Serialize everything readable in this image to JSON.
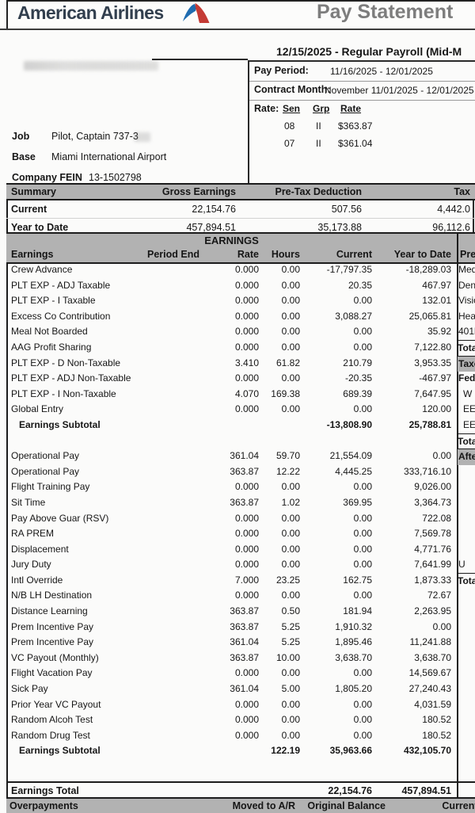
{
  "header": {
    "logo_text": "American Airlines",
    "title": "Pay Statement",
    "statement_title": "12/15/2025 - Regular Payroll (Mid-M",
    "colors": {
      "logo_navy": "#323f4e",
      "logo_blue": "#1f6cb0",
      "logo_red": "#c43b35",
      "title_gray": "#7d7d7d",
      "band_gray": "#b2b2b2"
    }
  },
  "pay_info": {
    "pay_period_label": "Pay Period:",
    "pay_period_value": "11/16/2025 - 12/01/2025",
    "contract_month_label": "Contract Month:",
    "contract_month_value": "November 11/01/2025 - 12/01/2025",
    "rate_label": "Rate:",
    "rate_table": {
      "headers": [
        "Sen",
        "Grp",
        "Rate"
      ],
      "rows": [
        [
          "08",
          "II",
          "$363.87"
        ],
        [
          "07",
          "II",
          "$361.04"
        ]
      ]
    }
  },
  "employee": {
    "job_label": "Job",
    "job_value": "Pilot, Captain 737-3",
    "base_label": "Base",
    "base_value": "Miami International Airport",
    "fein_label": "Company FEIN",
    "fein_value": "13-1502798"
  },
  "summary": {
    "headers": [
      "Summary",
      "Gross Earnings",
      "Pre-Tax Deduction",
      "Tax"
    ],
    "rows": [
      {
        "label": "Current",
        "gross": "22,154.76",
        "pretax": "507.56",
        "tax": "4,442.0"
      },
      {
        "label": "Year to Date",
        "gross": "457,894.51",
        "pretax": "35,173.88",
        "tax": "96,112.6"
      }
    ]
  },
  "earnings": {
    "section_title": "EARNINGS",
    "columns": [
      "Earnings",
      "Period End",
      "Rate",
      "Hours",
      "Current",
      "Year to Date"
    ],
    "side_header": "Pre-",
    "rows": [
      {
        "label": "Crew Advance",
        "rate": "0.000",
        "hours": "0.00",
        "current": "-17,797.35",
        "ytd": "-18,289.03",
        "side": "Med",
        "side_style": "plain"
      },
      {
        "label": "PLT EXP - ADJ Taxable",
        "rate": "0.000",
        "hours": "0.00",
        "current": "20.35",
        "ytd": "467.97",
        "side": "Den",
        "side_style": "plain"
      },
      {
        "label": "PLT EXP - I Taxable",
        "rate": "0.000",
        "hours": "0.00",
        "current": "0.00",
        "ytd": "132.01",
        "side": "Visio",
        "side_style": "plain"
      },
      {
        "label": "Excess Co Contribution",
        "rate": "0.000",
        "hours": "0.00",
        "current": "3,088.27",
        "ytd": "25,065.81",
        "side": "Hea",
        "side_style": "plain"
      },
      {
        "label": "Meal Not Boarded",
        "rate": "0.000",
        "hours": "0.00",
        "current": "0.00",
        "ytd": "35.92",
        "side": "401k",
        "side_style": "plain"
      },
      {
        "label": "AAG Profit Sharing",
        "rate": "0.000",
        "hours": "0.00",
        "current": "0.00",
        "ytd": "7,122.80",
        "side": "Tota",
        "side_style": "total"
      },
      {
        "label": "PLT EXP - D  Non-Taxable",
        "rate": "3.410",
        "hours": "61.82",
        "current": "210.79",
        "ytd": "3,953.35",
        "side": "Taxe",
        "side_style": "band"
      },
      {
        "label": "PLT EXP - ADJ Non-Taxable",
        "rate": "0.000",
        "hours": "0.00",
        "current": "-20.35",
        "ytd": "-467.97",
        "side": "Fede",
        "side_style": "bold"
      },
      {
        "label": "PLT EXP - I  Non-Taxable",
        "rate": "4.070",
        "hours": "169.38",
        "current": "689.39",
        "ytd": "7,647.95",
        "side": "W",
        "side_style": "indent"
      },
      {
        "label": "Global Entry",
        "rate": "0.000",
        "hours": "0.00",
        "current": "0.00",
        "ytd": "120.00",
        "side": "EE",
        "side_style": "indent"
      },
      {
        "label": "Earnings Subtotal",
        "rate": "",
        "hours": "",
        "current": "-13,808.90",
        "ytd": "25,788.81",
        "side": "EE",
        "side_style": "indent",
        "style": "subtotal"
      },
      {
        "label": "",
        "rate": "",
        "hours": "",
        "current": "",
        "ytd": "",
        "side": "Tota",
        "side_style": "total",
        "style": "blank"
      },
      {
        "label": "Operational Pay",
        "rate": "361.04",
        "hours": "59.70",
        "current": "21,554.09",
        "ytd": "0.00",
        "side": "Afte",
        "side_style": "band"
      },
      {
        "label": "Operational Pay",
        "rate": "363.87",
        "hours": "12.22",
        "current": "4,445.25",
        "ytd": "333,716.10",
        "side": "",
        "side_style": "plain"
      },
      {
        "label": "Flight Training Pay",
        "rate": "0.000",
        "hours": "0.00",
        "current": "0.00",
        "ytd": "9,026.00",
        "side": "",
        "side_style": "plain"
      },
      {
        "label": "Sit Time",
        "rate": "363.87",
        "hours": "1.02",
        "current": "369.95",
        "ytd": "3,364.73",
        "side": "",
        "side_style": "plain"
      },
      {
        "label": "Pay Above Guar (RSV)",
        "rate": "0.000",
        "hours": "0.00",
        "current": "0.00",
        "ytd": "722.08",
        "side": "",
        "side_style": "plain"
      },
      {
        "label": "RA PREM",
        "rate": "0.000",
        "hours": "0.00",
        "current": "0.00",
        "ytd": "7,569.78",
        "side": "",
        "side_style": "plain"
      },
      {
        "label": "Displacement",
        "rate": "0.000",
        "hours": "0.00",
        "current": "0.00",
        "ytd": "4,771.76",
        "side": "",
        "side_style": "plain"
      },
      {
        "label": "Jury Duty",
        "rate": "0.000",
        "hours": "0.00",
        "current": "0.00",
        "ytd": "7,641.99",
        "side": "U",
        "side_style": "plain"
      },
      {
        "label": "Intl Override",
        "rate": "7.000",
        "hours": "23.25",
        "current": "162.75",
        "ytd": "1,873.33",
        "side": "Tota",
        "side_style": "total"
      },
      {
        "label": "N/B LH Destination",
        "rate": "0.000",
        "hours": "0.00",
        "current": "0.00",
        "ytd": "72.67",
        "side": "",
        "side_style": "plain"
      },
      {
        "label": "Distance Learning",
        "rate": "363.87",
        "hours": "0.50",
        "current": "181.94",
        "ytd": "2,263.95",
        "side": "",
        "side_style": "plain"
      },
      {
        "label": "Prem Incentive Pay",
        "rate": "363.87",
        "hours": "5.25",
        "current": "1,910.32",
        "ytd": "0.00",
        "side": "",
        "side_style": "plain"
      },
      {
        "label": "Prem Incentive Pay",
        "rate": "361.04",
        "hours": "5.25",
        "current": "1,895.46",
        "ytd": "11,241.88",
        "side": "",
        "side_style": "plain"
      },
      {
        "label": "VC Payout (Monthly)",
        "rate": "363.87",
        "hours": "10.00",
        "current": "3,638.70",
        "ytd": "3,638.70",
        "side": "",
        "side_style": "plain"
      },
      {
        "label": "Flight Vacation Pay",
        "rate": "0.000",
        "hours": "0.00",
        "current": "0.00",
        "ytd": "14,569.67",
        "side": "",
        "side_style": "plain"
      },
      {
        "label": "Sick Pay",
        "rate": "361.04",
        "hours": "5.00",
        "current": "1,805.20",
        "ytd": "27,240.43",
        "side": "",
        "side_style": "plain"
      },
      {
        "label": "Prior Year VC Payout",
        "rate": "0.000",
        "hours": "0.00",
        "current": "0.00",
        "ytd": "4,031.59",
        "side": "",
        "side_style": "plain"
      },
      {
        "label": "Random Alcoh Test",
        "rate": "0.000",
        "hours": "0.00",
        "current": "0.00",
        "ytd": "180.52",
        "side": "",
        "side_style": "plain"
      },
      {
        "label": "Random Drug Test",
        "rate": "0.000",
        "hours": "0.00",
        "current": "0.00",
        "ytd": "180.52",
        "side": "",
        "side_style": "plain"
      },
      {
        "label": "Earnings Subtotal",
        "rate": "",
        "hours": "122.19",
        "current": "35,963.66",
        "ytd": "432,105.70",
        "side": "",
        "side_style": "plain",
        "style": "subtotal"
      }
    ],
    "total_row": {
      "label": "Earnings Total",
      "current": "22,154.76",
      "ytd": "457,894.51"
    }
  },
  "overpayments": {
    "headers": [
      "Overpayments",
      "Moved to A/R",
      "Original Balance",
      "Current Re"
    ]
  }
}
